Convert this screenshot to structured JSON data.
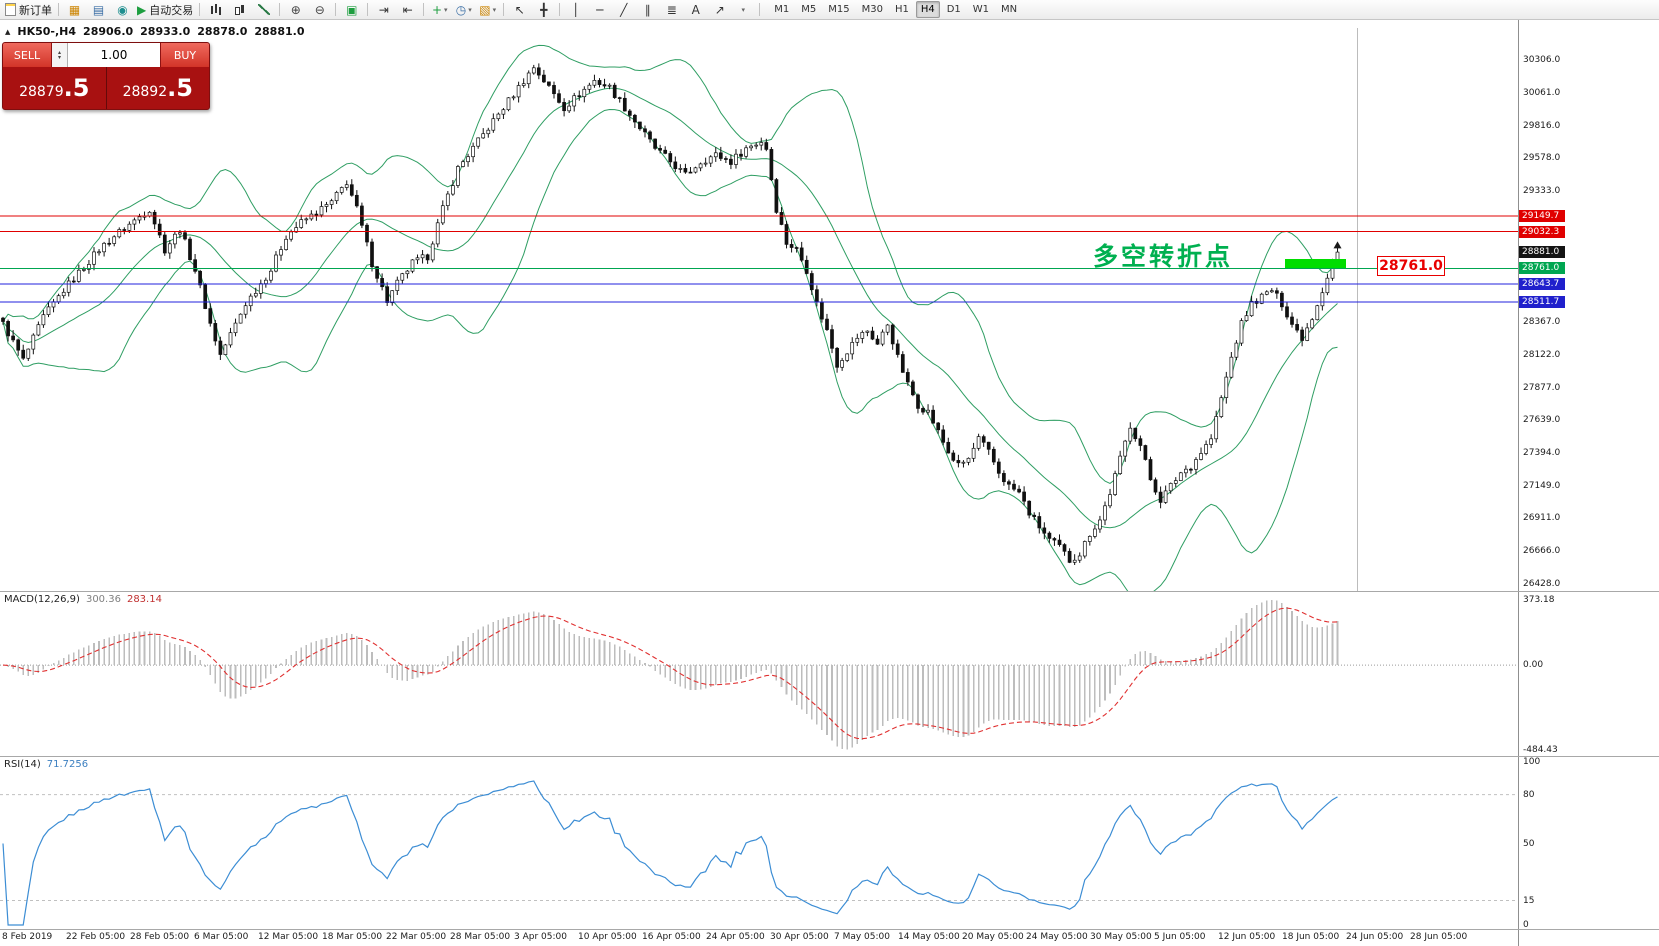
{
  "toolbar": {
    "new_order_label": "新订单",
    "auto_trading_label": "自动交易",
    "timeframes": [
      "M1",
      "M5",
      "M15",
      "M30",
      "H1",
      "H4",
      "D1",
      "W1",
      "MN"
    ],
    "active_timeframe": "H4"
  },
  "icons": {
    "market_watch": "▦",
    "data_window": "▤",
    "strategy_tester": "◉",
    "autoplay": "▶",
    "zoom_in": "⊕",
    "zoom_out": "⊖",
    "tile_windows": "▣",
    "auto_scroll": "⇥",
    "chart_shift": "⇤",
    "new_chart": "+",
    "caret": "▾",
    "clock": "◷",
    "template": "▧",
    "cursor": "↖",
    "crosshair": "╋",
    "vline": "│",
    "hline": "─",
    "trendline": "╱",
    "channel": "∥",
    "fibonacci": "≣",
    "text_tool": "A",
    "arrows": "↗",
    "collapse": "▲",
    "spin_up": "▴",
    "spin_down": "▾"
  },
  "chart_info": {
    "symbol_period": "HK50-,H4",
    "open": "28906.0",
    "high": "28933.0",
    "low": "28878.0",
    "close": "28881.0"
  },
  "trade_panel": {
    "sell_label": "SELL",
    "buy_label": "BUY",
    "volume": "1.00",
    "sell_price": "28879",
    "sell_fraction": ".5",
    "buy_price": "28892",
    "buy_fraction": ".5"
  },
  "annotations": {
    "note_text": "多空转折点",
    "note_color": "#00b050",
    "zone_color": "#00dd00",
    "level_label": "28761.0",
    "level_color": "#e80000"
  },
  "price_axis": {
    "ticks": [
      "30306.0",
      "30061.0",
      "29816.0",
      "29578.0",
      "29333.0",
      "28367.0",
      "28122.0",
      "27877.0",
      "27639.0",
      "27394.0",
      "27149.0",
      "26911.0",
      "26666.0",
      "26428.0"
    ],
    "tags": [
      {
        "label": "29149.7",
        "price": 29149.7,
        "color": "#e00000"
      },
      {
        "label": "29032.3",
        "price": 29032.3,
        "color": "#e00000"
      },
      {
        "label": "28881.0",
        "price": 28881.0,
        "color": "#141414"
      },
      {
        "label": "28761.0",
        "price": 28761.0,
        "color": "#00a651"
      },
      {
        "label": "28643.7",
        "price": 28643.7,
        "color": "#2020cc"
      },
      {
        "label": "28511.7",
        "price": 28511.7,
        "color": "#2020cc"
      }
    ]
  },
  "hlines": [
    {
      "price": 29149.7,
      "color": "#e00000"
    },
    {
      "price": 29032.3,
      "color": "#e00000"
    },
    {
      "price": 28761.0,
      "color": "#00a651"
    },
    {
      "price": 28643.7,
      "color": "#2222dd"
    },
    {
      "price": 28511.7,
      "color": "#2222dd"
    }
  ],
  "macd": {
    "label": "MACD(12,26,9)",
    "value1": "300.36",
    "value2": "283.14",
    "axis": [
      {
        "label": "373.18",
        "value": 373.18
      },
      {
        "label": "0.00",
        "value": 0
      },
      {
        "label": "-484.43",
        "value": -484.43
      }
    ]
  },
  "rsi": {
    "label": "RSI(14)",
    "value": "71.7256",
    "axis": [
      {
        "label": "100",
        "value": 100
      },
      {
        "label": "80",
        "value": 80
      },
      {
        "label": "50",
        "value": 50
      },
      {
        "label": "15",
        "value": 15
      },
      {
        "label": "0",
        "value": 0
      }
    ],
    "levels": [
      80,
      15
    ]
  },
  "time_axis": [
    "8 Feb 2019",
    "22 Feb 05:00",
    "28 Feb 05:00",
    "6 Mar 05:00",
    "12 Mar 05:00",
    "18 Mar 05:00",
    "22 Mar 05:00",
    "28 Mar 05:00",
    "3 Apr 05:00",
    "10 Apr 05:00",
    "16 Apr 05:00",
    "24 Apr 05:00",
    "30 Apr 05:00",
    "7 May 05:00",
    "14 May 05:00",
    "20 May 05:00",
    "24 May 05:00",
    "30 May 05:00",
    "5 Jun 05:00",
    "12 Jun 05:00",
    "18 Jun 05:00",
    "24 Jun 05:00",
    "28 Jun 05:00"
  ],
  "chart_data": {
    "type": "candlestick",
    "symbol": "HK50-",
    "period": "H4",
    "visible_price_range": [
      26428.0,
      30306.0
    ],
    "candle_count": 265,
    "last_close": 28881.0,
    "indicators": [
      "Bollinger Bands(20,2)",
      "MACD(12,26,9)",
      "RSI(14)"
    ],
    "price_anchors": [
      [
        0,
        28350
      ],
      [
        4,
        28080
      ],
      [
        8,
        28400
      ],
      [
        12,
        28600
      ],
      [
        19,
        28900
      ],
      [
        22,
        29000
      ],
      [
        29,
        29200
      ],
      [
        32,
        28900
      ],
      [
        35,
        29050
      ],
      [
        38,
        28750
      ],
      [
        41,
        28350
      ],
      [
        43,
        28120
      ],
      [
        48,
        28500
      ],
      [
        50,
        28600
      ],
      [
        53,
        28750
      ],
      [
        56,
        29000
      ],
      [
        59,
        29100
      ],
      [
        65,
        29250
      ],
      [
        68,
        29400
      ],
      [
        70,
        29200
      ],
      [
        73,
        28800
      ],
      [
        76,
        28520
      ],
      [
        78,
        28650
      ],
      [
        81,
        28800
      ],
      [
        84,
        28850
      ],
      [
        87,
        29200
      ],
      [
        90,
        29500
      ],
      [
        93,
        29650
      ],
      [
        96,
        29800
      ],
      [
        99,
        29950
      ],
      [
        102,
        30100
      ],
      [
        105,
        30250
      ],
      [
        108,
        30100
      ],
      [
        111,
        29950
      ],
      [
        114,
        30050
      ],
      [
        117,
        30150
      ],
      [
        120,
        30100
      ],
      [
        123,
        29950
      ],
      [
        126,
        29800
      ],
      [
        129,
        29650
      ],
      [
        132,
        29550
      ],
      [
        135,
        29450
      ],
      [
        138,
        29550
      ],
      [
        141,
        29600
      ],
      [
        144,
        29550
      ],
      [
        147,
        29650
      ],
      [
        150,
        29700
      ],
      [
        151,
        29650
      ],
      [
        153,
        29200
      ],
      [
        155,
        28950
      ],
      [
        157,
        28900
      ],
      [
        159,
        28750
      ],
      [
        161,
        28500
      ],
      [
        163,
        28300
      ],
      [
        165,
        28050
      ],
      [
        167,
        28150
      ],
      [
        169,
        28250
      ],
      [
        171,
        28300
      ],
      [
        173,
        28200
      ],
      [
        175,
        28350
      ],
      [
        177,
        28100
      ],
      [
        179,
        27900
      ],
      [
        181,
        27750
      ],
      [
        183,
        27700
      ],
      [
        185,
        27550
      ],
      [
        187,
        27400
      ],
      [
        189,
        27300
      ],
      [
        191,
        27350
      ],
      [
        193,
        27500
      ],
      [
        195,
        27400
      ],
      [
        197,
        27250
      ],
      [
        199,
        27150
      ],
      [
        201,
        27100
      ],
      [
        203,
        26950
      ],
      [
        205,
        26850
      ],
      [
        207,
        26750
      ],
      [
        209,
        26700
      ],
      [
        211,
        26600
      ],
      [
        213,
        26650
      ],
      [
        215,
        26800
      ],
      [
        217,
        26900
      ],
      [
        219,
        27100
      ],
      [
        221,
        27350
      ],
      [
        223,
        27600
      ],
      [
        225,
        27450
      ],
      [
        227,
        27200
      ],
      [
        229,
        27050
      ],
      [
        231,
        27150
      ],
      [
        233,
        27250
      ],
      [
        235,
        27300
      ],
      [
        237,
        27400
      ],
      [
        239,
        27500
      ],
      [
        241,
        27800
      ],
      [
        243,
        28100
      ],
      [
        245,
        28350
      ],
      [
        247,
        28500
      ],
      [
        249,
        28550
      ],
      [
        251,
        28600
      ],
      [
        253,
        28500
      ],
      [
        255,
        28350
      ],
      [
        257,
        28250
      ],
      [
        259,
        28400
      ],
      [
        261,
        28600
      ],
      [
        263,
        28800
      ],
      [
        264,
        28881
      ]
    ]
  }
}
